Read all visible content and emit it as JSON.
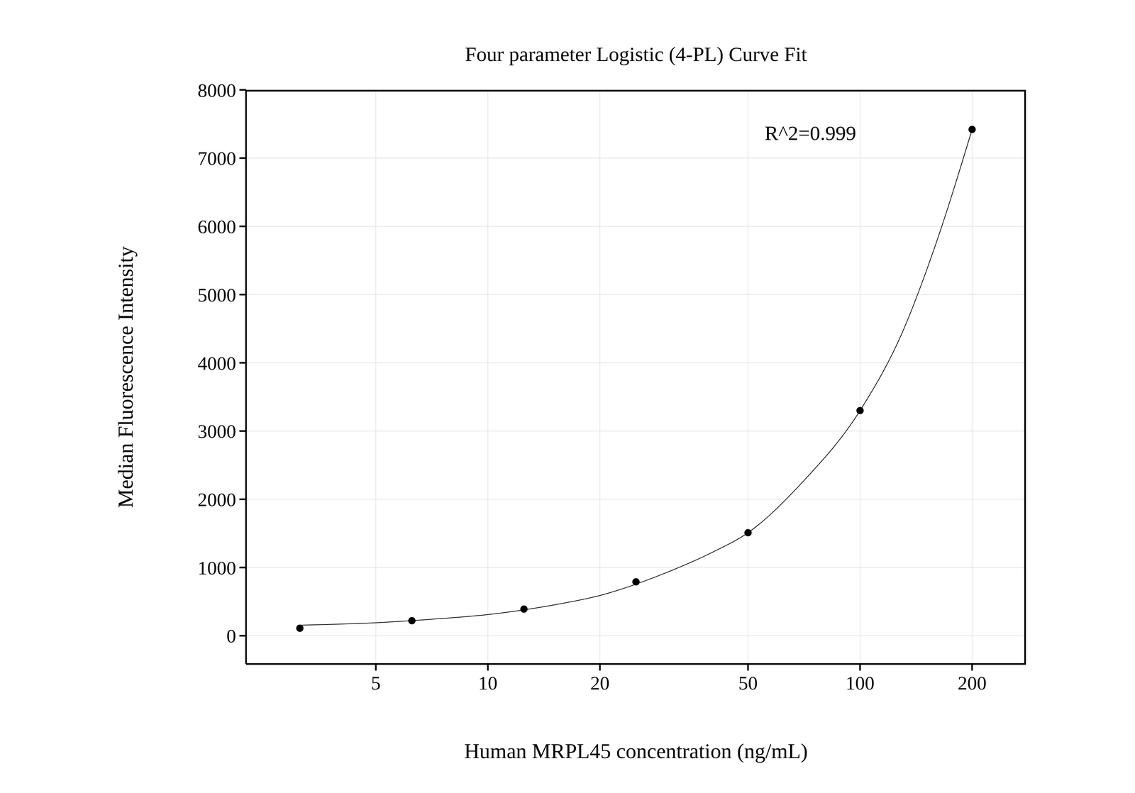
{
  "chart_data": {
    "type": "scatter",
    "title": "Four parameter Logistic (4-PL) Curve Fit",
    "x_label": "Human MRPL45 concentration (ng/mL)",
    "y_label": "Median Fluorescence Intensity",
    "annotation": "R^2=0.999",
    "x": [
      3.125,
      6.25,
      12.5,
      25,
      50,
      100,
      200
    ],
    "values": [
      110,
      220,
      390,
      790,
      1510,
      3300,
      7420
    ],
    "color": "#000000",
    "fit": {
      "x": [
        3.125,
        5,
        7,
        10,
        15,
        20,
        30,
        40,
        50,
        70,
        100,
        130,
        160,
        200
      ],
      "values": [
        155,
        190,
        240,
        310,
        450,
        590,
        920,
        1220,
        1510,
        2250,
        3300,
        4450,
        5750,
        7420
      ]
    },
    "log": "x",
    "grid": true,
    "xlim": [
      2.24,
      279
    ],
    "xticks": [
      5,
      10,
      20,
      50,
      100,
      200
    ],
    "ylim": [
      -414,
      8000
    ],
    "yticks": [
      0,
      1000,
      2000,
      3000,
      4000,
      5000,
      6000,
      7000,
      8000
    ]
  }
}
